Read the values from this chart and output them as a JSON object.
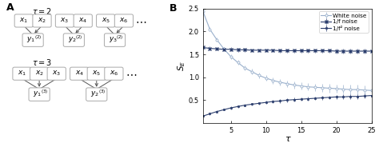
{
  "tau": [
    1,
    2,
    3,
    4,
    5,
    6,
    7,
    8,
    9,
    10,
    11,
    12,
    13,
    14,
    15,
    16,
    17,
    18,
    19,
    20,
    21,
    22,
    23,
    24,
    25
  ],
  "white_noise_mean": [
    2.45,
    2.05,
    1.82,
    1.62,
    1.45,
    1.32,
    1.2,
    1.12,
    1.04,
    0.98,
    0.93,
    0.89,
    0.86,
    0.83,
    0.81,
    0.79,
    0.78,
    0.77,
    0.76,
    0.75,
    0.74,
    0.73,
    0.73,
    0.72,
    0.71
  ],
  "pink_noise_mean": [
    1.65,
    1.63,
    1.62,
    1.61,
    1.61,
    1.6,
    1.6,
    1.59,
    1.59,
    1.59,
    1.59,
    1.58,
    1.58,
    1.58,
    1.58,
    1.58,
    1.58,
    1.58,
    1.58,
    1.57,
    1.57,
    1.57,
    1.57,
    1.57,
    1.57
  ],
  "brown_noise_mean": [
    0.15,
    0.2,
    0.25,
    0.29,
    0.33,
    0.36,
    0.39,
    0.41,
    0.43,
    0.45,
    0.47,
    0.48,
    0.5,
    0.51,
    0.52,
    0.53,
    0.54,
    0.55,
    0.56,
    0.57,
    0.57,
    0.58,
    0.58,
    0.59,
    0.6
  ],
  "white_noise_err": [
    0.04,
    0.04,
    0.04,
    0.04,
    0.05,
    0.05,
    0.05,
    0.06,
    0.06,
    0.06,
    0.07,
    0.07,
    0.07,
    0.08,
    0.08,
    0.08,
    0.08,
    0.09,
    0.09,
    0.09,
    0.09,
    0.1,
    0.1,
    0.1,
    0.1
  ],
  "pink_noise_err": [
    0.04,
    0.04,
    0.04,
    0.04,
    0.04,
    0.04,
    0.04,
    0.04,
    0.04,
    0.04,
    0.04,
    0.04,
    0.04,
    0.05,
    0.05,
    0.05,
    0.05,
    0.05,
    0.05,
    0.05,
    0.05,
    0.05,
    0.05,
    0.05,
    0.05
  ],
  "brown_noise_err": [
    0.02,
    0.02,
    0.02,
    0.02,
    0.03,
    0.03,
    0.03,
    0.03,
    0.03,
    0.03,
    0.03,
    0.04,
    0.04,
    0.04,
    0.04,
    0.04,
    0.04,
    0.04,
    0.04,
    0.04,
    0.05,
    0.05,
    0.05,
    0.05,
    0.05
  ],
  "color_white": "#9ab0cc",
  "color_pink": "#2d3f6e",
  "color_brown": "#2d3f6e",
  "panel_a_label": "A",
  "panel_b_label": "B",
  "xlabel": "τ",
  "ylabel": "$S_E$",
  "xlim": [
    1,
    25
  ],
  "ylim": [
    0,
    2.5
  ],
  "xticks": [
    5,
    10,
    15,
    20,
    25
  ],
  "yticks": [
    0.5,
    1.0,
    1.5,
    2.0,
    2.5
  ],
  "legend_white": "White noise",
  "legend_pink": "1/f noise",
  "legend_brown": "1/f² noise"
}
